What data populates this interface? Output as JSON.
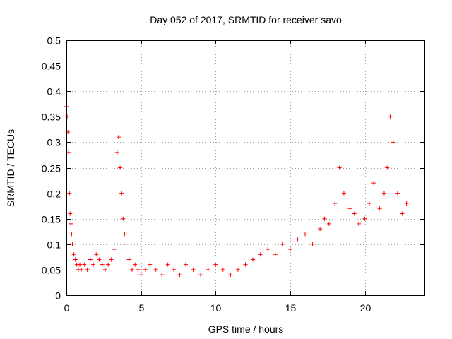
{
  "chart_data": {
    "type": "scatter",
    "title": "Day 052 of 2017, SRMTID for receiver savo",
    "xlabel": "GPS time / hours",
    "ylabel": "SRMTID / TECUs",
    "xlim": [
      0,
      24
    ],
    "ylim": [
      0,
      0.5
    ],
    "x_ticks": [
      0,
      5,
      10,
      15,
      20
    ],
    "x_tick_labels": [
      "0",
      "5",
      "10",
      "15",
      "20"
    ],
    "y_ticks": [
      0,
      0.05,
      0.1,
      0.15,
      0.2,
      0.25,
      0.3,
      0.35,
      0.4,
      0.45,
      0.5
    ],
    "y_tick_labels": [
      "0",
      "0.05",
      "0.1",
      "0.15",
      "0.2",
      "0.25",
      "0.3",
      "0.35",
      "0.4",
      "0.45",
      "0.5"
    ],
    "grid": true,
    "marker": "+",
    "marker_color": "#ff0000",
    "series": [
      {
        "name": "SRMTID",
        "x": [
          0.0,
          0.05,
          0.1,
          0.15,
          0.2,
          0.25,
          0.3,
          0.35,
          0.4,
          0.5,
          0.6,
          0.7,
          0.8,
          0.9,
          1.0,
          1.2,
          1.4,
          1.6,
          1.8,
          2.0,
          2.2,
          2.4,
          2.6,
          2.8,
          3.0,
          3.2,
          3.4,
          3.5,
          3.6,
          3.7,
          3.8,
          3.9,
          4.0,
          4.2,
          4.4,
          4.6,
          4.8,
          5.0,
          5.3,
          5.6,
          6.0,
          6.4,
          6.8,
          7.2,
          7.6,
          8.0,
          8.5,
          9.0,
          9.5,
          10.0,
          10.5,
          11.0,
          11.5,
          12.0,
          12.5,
          13.0,
          13.5,
          14.0,
          14.5,
          15.0,
          15.5,
          16.0,
          16.5,
          17.0,
          17.3,
          17.6,
          18.0,
          18.3,
          18.6,
          19.0,
          19.3,
          19.6,
          20.0,
          20.3,
          20.6,
          21.0,
          21.3,
          21.5,
          21.7,
          21.9,
          22.2,
          22.5,
          22.8
        ],
        "y": [
          0.37,
          0.35,
          0.32,
          0.28,
          0.2,
          0.16,
          0.14,
          0.12,
          0.1,
          0.08,
          0.07,
          0.06,
          0.05,
          0.06,
          0.05,
          0.06,
          0.05,
          0.07,
          0.06,
          0.08,
          0.07,
          0.06,
          0.05,
          0.06,
          0.07,
          0.09,
          0.28,
          0.31,
          0.25,
          0.2,
          0.15,
          0.12,
          0.1,
          0.07,
          0.05,
          0.06,
          0.05,
          0.04,
          0.05,
          0.06,
          0.05,
          0.04,
          0.06,
          0.05,
          0.04,
          0.06,
          0.05,
          0.04,
          0.05,
          0.06,
          0.05,
          0.04,
          0.05,
          0.06,
          0.07,
          0.08,
          0.09,
          0.08,
          0.1,
          0.09,
          0.11,
          0.12,
          0.1,
          0.13,
          0.15,
          0.14,
          0.18,
          0.25,
          0.2,
          0.17,
          0.16,
          0.14,
          0.15,
          0.18,
          0.22,
          0.17,
          0.2,
          0.25,
          0.35,
          0.3,
          0.2,
          0.16,
          0.18
        ]
      }
    ]
  }
}
